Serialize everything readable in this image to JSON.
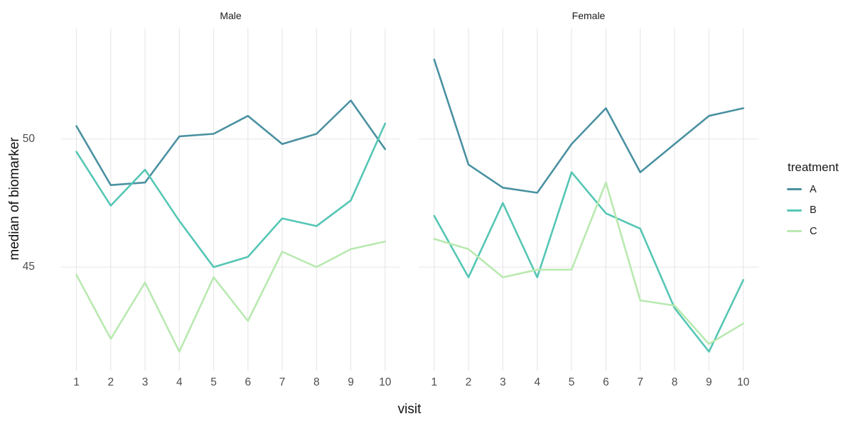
{
  "chart_data": {
    "type": "line",
    "title": "",
    "xlabel": "visit",
    "ylabel": "median of biomarker",
    "x": [
      1,
      2,
      3,
      4,
      5,
      6,
      7,
      8,
      9,
      10
    ],
    "x_tick_labels": [
      "1",
      "2",
      "3",
      "4",
      "5",
      "6",
      "7",
      "8",
      "9",
      "10"
    ],
    "y_ticks": [
      45,
      50
    ],
    "ylim": [
      41.3,
      53.6
    ],
    "grid": "major-only",
    "facet_variable_values": [
      "Male",
      "Female"
    ],
    "legend": {
      "title": "treatment",
      "position": "right",
      "labels": [
        "A",
        "B",
        "C"
      ]
    },
    "series_colors": {
      "A": "#4a91a1",
      "B": "#55c6b5",
      "C": "#b9e9b0"
    },
    "facets": [
      {
        "title": "Male",
        "series": [
          {
            "name": "A",
            "values": [
              50.5,
              48.2,
              48.3,
              50.1,
              50.2,
              50.9,
              49.8,
              50.2,
              51.5,
              49.6
            ]
          },
          {
            "name": "B",
            "values": [
              49.5,
              47.4,
              48.8,
              46.8,
              45.0,
              45.4,
              46.9,
              46.6,
              47.6,
              50.6
            ]
          },
          {
            "name": "C",
            "values": [
              44.7,
              42.2,
              44.4,
              41.7,
              44.6,
              42.9,
              45.6,
              45.0,
              45.7,
              46.0
            ]
          }
        ]
      },
      {
        "title": "Female",
        "series": [
          {
            "name": "A",
            "values": [
              53.1,
              49.0,
              48.1,
              47.9,
              49.8,
              51.2,
              48.7,
              49.8,
              50.9,
              51.2
            ]
          },
          {
            "name": "B",
            "values": [
              47.0,
              44.6,
              47.5,
              44.6,
              48.7,
              47.1,
              46.5,
              43.4,
              41.7,
              44.5
            ]
          },
          {
            "name": "C",
            "values": [
              46.1,
              45.7,
              44.6,
              44.9,
              44.9,
              48.3,
              43.7,
              43.5,
              42.0,
              42.8
            ]
          }
        ]
      }
    ],
    "style": {
      "background": "#ffffff",
      "grid_color": "#e8e8e8",
      "tick_label_color": "#4d4d4d",
      "text_color": "#1a1a1a",
      "line_width": 2.6
    }
  }
}
